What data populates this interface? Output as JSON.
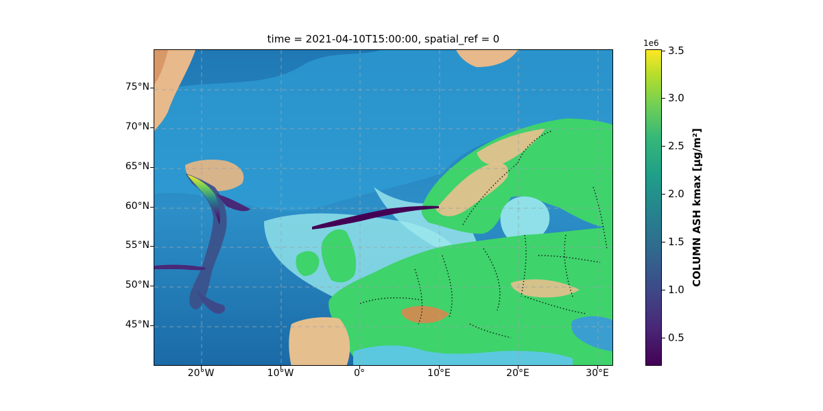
{
  "title": "time = 2021-04-10T15:00:00, spatial_ref = 0",
  "map": {
    "lon_range": [
      -26,
      32
    ],
    "lat_range": [
      40,
      80
    ],
    "x_ticks": [
      {
        "value": -20,
        "label": "20°W"
      },
      {
        "value": -10,
        "label": "10°W"
      },
      {
        "value": 0,
        "label": "0°"
      },
      {
        "value": 10,
        "label": "10°E"
      },
      {
        "value": 20,
        "label": "20°E"
      },
      {
        "value": 30,
        "label": "30°E"
      }
    ],
    "y_ticks": [
      {
        "value": 45,
        "label": "45°N"
      },
      {
        "value": 50,
        "label": "50°N"
      },
      {
        "value": 55,
        "label": "55°N"
      },
      {
        "value": 60,
        "label": "60°N"
      },
      {
        "value": 65,
        "label": "65°N"
      },
      {
        "value": 70,
        "label": "70°N"
      },
      {
        "value": 75,
        "label": "75°N"
      }
    ],
    "gridlines": true,
    "ash_plume_source": "Iceland"
  },
  "colorbar": {
    "label": "COLUMN ASH kmax [μg/m²]",
    "exponent_label": "1e6",
    "range": [
      0.2,
      3.5
    ],
    "ticks": [
      "0.5",
      "1.0",
      "1.5",
      "2.0",
      "2.5",
      "3.0",
      "3.5"
    ],
    "colormap": "viridis"
  }
}
